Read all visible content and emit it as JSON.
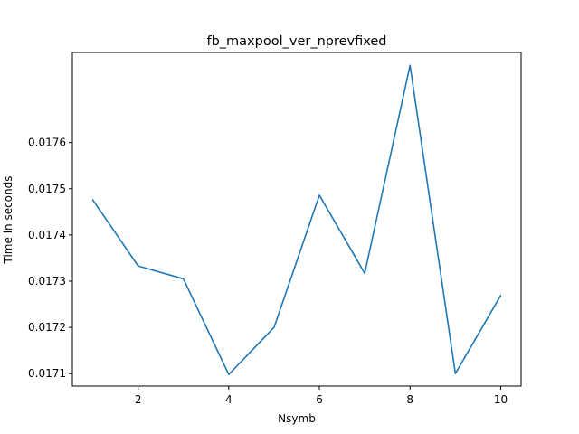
{
  "chart_data": {
    "type": "line",
    "title": "fb_maxpool_ver_nprevfixed",
    "xlabel": "Nsymb",
    "ylabel": "Time in seconds",
    "xlim": [
      0.55,
      10.45
    ],
    "ylim": [
      0.017073,
      0.017795
    ],
    "xticks": [
      2,
      4,
      6,
      8,
      10
    ],
    "xtick_labels": [
      "2",
      "4",
      "6",
      "8",
      "10"
    ],
    "yticks": [
      0.0171,
      0.0172,
      0.0173,
      0.0174,
      0.0175,
      0.0176
    ],
    "ytick_labels": [
      "0.0171",
      "0.0172",
      "0.0173",
      "0.0174",
      "0.0175",
      "0.0176"
    ],
    "grid": false,
    "series": [
      {
        "name": "fb_maxpool_ver_nprevfixed",
        "color": "#1f77b4",
        "x": [
          1,
          2,
          3,
          4,
          5,
          6,
          7,
          8,
          9,
          10
        ],
        "y": [
          0.017476,
          0.017333,
          0.017305,
          0.017098,
          0.0172,
          0.017486,
          0.017317,
          0.017767,
          0.0171,
          0.017269
        ]
      }
    ]
  }
}
